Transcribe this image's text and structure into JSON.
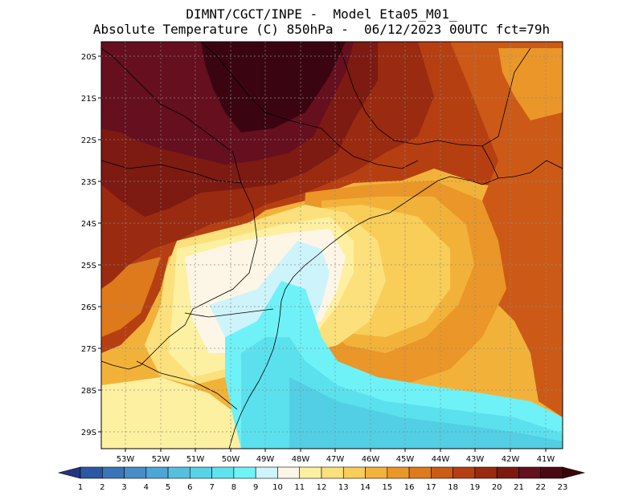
{
  "header": {
    "line1": "DIMNT/CGCT/INPE -  Model Eta05_M01_",
    "line2": "Absolute Temperature (C) 850hPa -  06/12/2023 00UTC fct=79h"
  },
  "map": {
    "lat_labels": [
      "20S",
      "21S",
      "22S",
      "23S",
      "24S",
      "25S",
      "26S",
      "27S",
      "28S",
      "29S"
    ],
    "lon_labels": [
      "53W",
      "52W",
      "51W",
      "50W",
      "49W",
      "48W",
      "47W",
      "46W",
      "45W",
      "44W",
      "43W",
      "42W",
      "41W"
    ],
    "gridlines": true
  },
  "colorbar": {
    "labels": [
      "1",
      "2",
      "3",
      "4",
      "5",
      "6",
      "7",
      "8",
      "9",
      "10",
      "11",
      "12",
      "13",
      "14",
      "15",
      "16",
      "17",
      "18",
      "19",
      "20",
      "21",
      "22",
      "23"
    ],
    "colors": [
      "#23357f",
      "#2b58a4",
      "#3a74b8",
      "#478dc8",
      "#4ea6d6",
      "#55bfe0",
      "#56d3e8",
      "#5fe3ee",
      "#6ef4f8",
      "#cef4fb",
      "#fdf6e6",
      "#fdf0a0",
      "#fbe07c",
      "#f8cd58",
      "#f3b23a",
      "#eb9728",
      "#df7b1c",
      "#cc5b16",
      "#b63f12",
      "#9a2a10",
      "#7d1a10",
      "#65101e",
      "#4a0a14",
      "#3a0508"
    ]
  },
  "palette": {
    "t23": "#3a0510",
    "t22": "#650f1f",
    "t21": "#7d1a12",
    "t20": "#9a2a10",
    "t19": "#b63f12",
    "t18": "#cc5a16",
    "t17": "#df7a1c",
    "t16": "#ea9628",
    "t15": "#f2b23a",
    "t14": "#f8cd58",
    "t13": "#fbe07c",
    "t12": "#fdf0a0",
    "t11": "#fdf6e6",
    "t10": "#cef4fb",
    "t9": "#6ef2f8",
    "t8": "#5be1ee",
    "t7": "#52cfe4"
  }
}
